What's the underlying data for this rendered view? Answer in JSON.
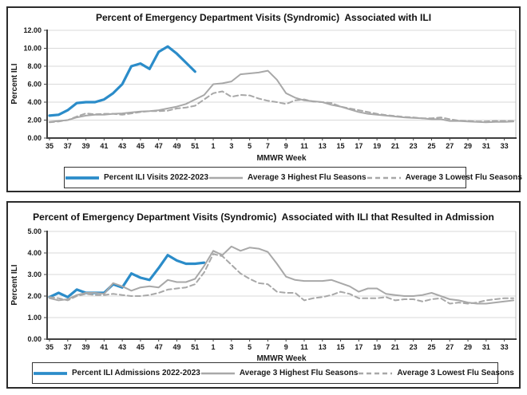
{
  "page": {
    "background": "#ffffff"
  },
  "colors": {
    "current_season_line": "#2b8cc9",
    "average_line": "#a8a8a8",
    "gridline": "#d9d9d9",
    "axis": "#404040",
    "text": "#1a1a1a"
  },
  "chart_data": [
    {
      "type": "line",
      "title": "Percent of Emergency Department Visits (Syndromic)  Associated with ILI",
      "xlabel": "MMWR Week",
      "ylabel": "Percent ILI",
      "ylim": [
        0,
        12
      ],
      "ytick_step": 2,
      "ytick_decimals": 2,
      "grid": "horizontal",
      "legend_position": "bottom",
      "categories": [
        35,
        36,
        37,
        38,
        39,
        40,
        41,
        42,
        43,
        44,
        45,
        46,
        47,
        48,
        49,
        50,
        51,
        52,
        1,
        2,
        3,
        4,
        5,
        6,
        7,
        8,
        9,
        10,
        11,
        12,
        13,
        14,
        15,
        16,
        17,
        18,
        19,
        20,
        21,
        22,
        23,
        24,
        25,
        26,
        27,
        28,
        29,
        30,
        31,
        32,
        33,
        34
      ],
      "x_tick_labels": [
        "35",
        "37",
        "39",
        "41",
        "43",
        "45",
        "47",
        "49",
        "51",
        "1",
        "3",
        "5",
        "7",
        "9",
        "11",
        "13",
        "15",
        "17",
        "19",
        "21",
        "23",
        "25",
        "27",
        "29",
        "31",
        "33"
      ],
      "series": [
        {
          "name": "Percent ILI Visits 2022-2023",
          "color": "#2b8cc9",
          "style": "solid",
          "width": 3.2,
          "values": [
            2.5,
            2.6,
            3.1,
            3.9,
            4.0,
            4.0,
            4.3,
            5.0,
            6.0,
            8.0,
            8.3,
            7.7,
            9.6,
            10.2,
            9.4,
            8.4,
            7.4
          ]
        },
        {
          "name": "Average 3 Highest Flu Seasons",
          "color": "#a8a8a8",
          "style": "solid",
          "width": 2,
          "values": [
            1.8,
            1.9,
            2.0,
            2.3,
            2.5,
            2.6,
            2.6,
            2.7,
            2.75,
            2.85,
            2.95,
            3.0,
            3.1,
            3.3,
            3.5,
            3.8,
            4.3,
            4.8,
            6.0,
            6.1,
            6.3,
            7.1,
            7.2,
            7.3,
            7.5,
            6.5,
            5.0,
            4.5,
            4.2,
            4.1,
            4.0,
            3.7,
            3.5,
            3.2,
            2.9,
            2.7,
            2.6,
            2.5,
            2.4,
            2.3,
            2.25,
            2.2,
            2.1,
            2.1,
            1.9,
            1.9,
            1.85,
            1.8,
            1.75,
            1.8,
            1.8,
            1.85
          ]
        },
        {
          "name": "Average 3 Lowest Flu Seasons",
          "color": "#a8a8a8",
          "style": "dashed",
          "width": 2,
          "values": [
            1.75,
            1.85,
            2.0,
            2.4,
            2.75,
            2.65,
            2.7,
            2.7,
            2.6,
            2.75,
            2.9,
            3.0,
            3.0,
            3.05,
            3.3,
            3.4,
            3.6,
            4.3,
            5.0,
            5.2,
            4.6,
            4.8,
            4.75,
            4.4,
            4.15,
            4.0,
            3.8,
            4.2,
            4.3,
            4.05,
            4.0,
            3.9,
            3.5,
            3.3,
            3.1,
            2.9,
            2.7,
            2.55,
            2.45,
            2.35,
            2.3,
            2.2,
            2.2,
            2.3,
            2.1,
            1.95,
            1.9,
            1.85,
            1.85,
            1.9,
            1.9,
            1.9
          ]
        }
      ]
    },
    {
      "type": "line",
      "title": "Percent of Emergency Department Visits (Syndromic)  Associated with ILI that Resulted in Admission",
      "xlabel": "MMWR Week",
      "ylabel": "Percent ILI",
      "ylim": [
        0,
        5
      ],
      "ytick_step": 1,
      "ytick_decimals": 2,
      "grid": "horizontal",
      "legend_position": "bottom",
      "categories": [
        35,
        36,
        37,
        38,
        39,
        40,
        41,
        42,
        43,
        44,
        45,
        46,
        47,
        48,
        49,
        50,
        51,
        52,
        1,
        2,
        3,
        4,
        5,
        6,
        7,
        8,
        9,
        10,
        11,
        12,
        13,
        14,
        15,
        16,
        17,
        18,
        19,
        20,
        21,
        22,
        23,
        24,
        25,
        26,
        27,
        28,
        29,
        30,
        31,
        32,
        33,
        34
      ],
      "x_tick_labels": [
        "35",
        "37",
        "39",
        "41",
        "43",
        "45",
        "47",
        "49",
        "51",
        "1",
        "3",
        "5",
        "7",
        "9",
        "11",
        "13",
        "15",
        "17",
        "19",
        "21",
        "23",
        "25",
        "27",
        "29",
        "31",
        "33"
      ],
      "series": [
        {
          "name": "Percent ILI Admissions 2022-2023",
          "color": "#2b8cc9",
          "style": "solid",
          "width": 3.2,
          "values": [
            1.95,
            2.15,
            1.95,
            2.3,
            2.15,
            2.15,
            2.15,
            2.55,
            2.4,
            3.05,
            2.85,
            2.75,
            3.3,
            3.9,
            3.65,
            3.5,
            3.5,
            3.55
          ]
        },
        {
          "name": "Average 3 Highest Flu Seasons",
          "color": "#a8a8a8",
          "style": "solid",
          "width": 2,
          "values": [
            1.9,
            1.8,
            1.85,
            2.05,
            2.15,
            2.15,
            2.1,
            2.6,
            2.45,
            2.25,
            2.4,
            2.45,
            2.4,
            2.75,
            2.65,
            2.65,
            2.8,
            3.4,
            4.1,
            3.9,
            4.3,
            4.1,
            4.25,
            4.2,
            4.05,
            3.5,
            2.9,
            2.75,
            2.7,
            2.7,
            2.7,
            2.75,
            2.6,
            2.45,
            2.2,
            2.35,
            2.35,
            2.1,
            2.05,
            2.0,
            2.0,
            2.05,
            2.15,
            2.0,
            1.85,
            1.8,
            1.7,
            1.65,
            1.65,
            1.7,
            1.75,
            1.8
          ]
        },
        {
          "name": "Average 3 Lowest Flu Seasons",
          "color": "#a8a8a8",
          "style": "dashed",
          "width": 2,
          "values": [
            1.95,
            1.9,
            1.8,
            2.0,
            2.1,
            2.05,
            2.05,
            2.1,
            2.05,
            2.0,
            2.0,
            2.05,
            2.15,
            2.3,
            2.35,
            2.4,
            2.55,
            3.1,
            3.95,
            3.85,
            3.45,
            3.05,
            2.8,
            2.6,
            2.55,
            2.2,
            2.15,
            2.15,
            1.8,
            1.9,
            1.95,
            2.05,
            2.2,
            2.1,
            1.9,
            1.9,
            1.9,
            1.95,
            1.8,
            1.85,
            1.85,
            1.75,
            1.85,
            1.9,
            1.65,
            1.7,
            1.65,
            1.7,
            1.8,
            1.85,
            1.9,
            1.9
          ]
        }
      ]
    }
  ]
}
